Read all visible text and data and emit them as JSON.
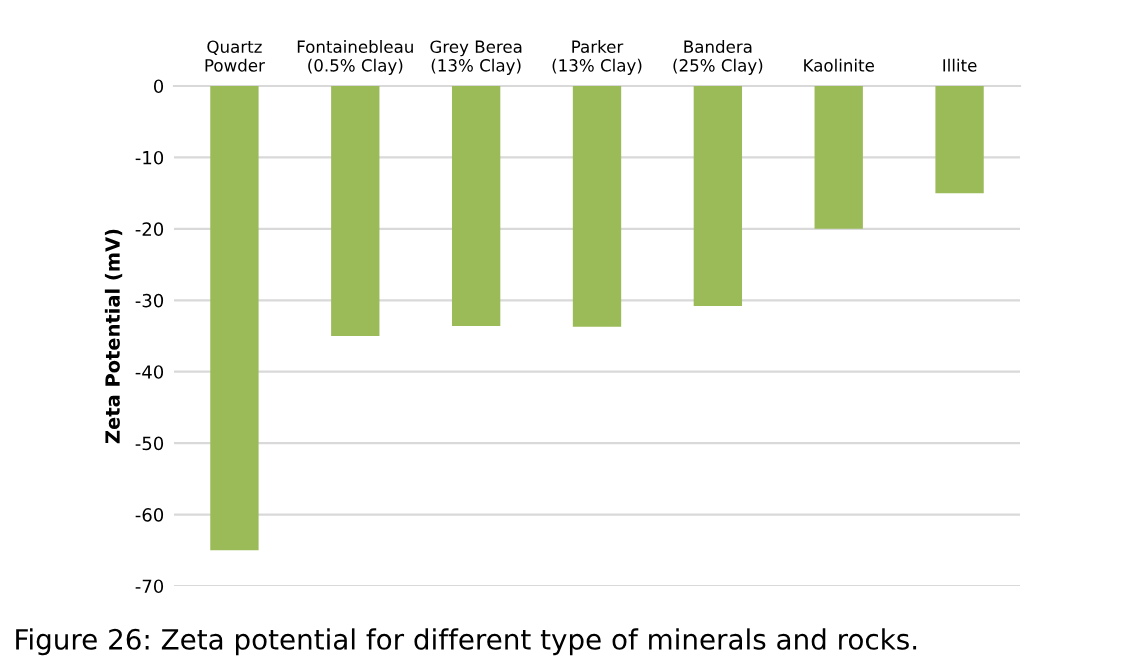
{
  "chart_data": {
    "type": "bar",
    "categories": [
      "Quartz\nPowder",
      "Fontainebleau\n(0.5% Clay)",
      "Grey Berea\n(13% Clay)",
      "Parker\n(13% Clay)",
      "Bandera\n(25% Clay)",
      "Kaolinite",
      "Illite"
    ],
    "values": [
      -65,
      -35,
      -33.6,
      -33.7,
      -30.8,
      -20,
      -15
    ],
    "color": "#9bbb59",
    "ylabel": "Zeta Potential (mV)",
    "ylim": [
      -70,
      0
    ],
    "yticks": [
      -70,
      -60,
      -50,
      -40,
      -30,
      -20,
      -10,
      0
    ],
    "grid": "y",
    "annotations": [
      "Figure 26: Zeta potential for different type of minerals and rocks."
    ]
  }
}
